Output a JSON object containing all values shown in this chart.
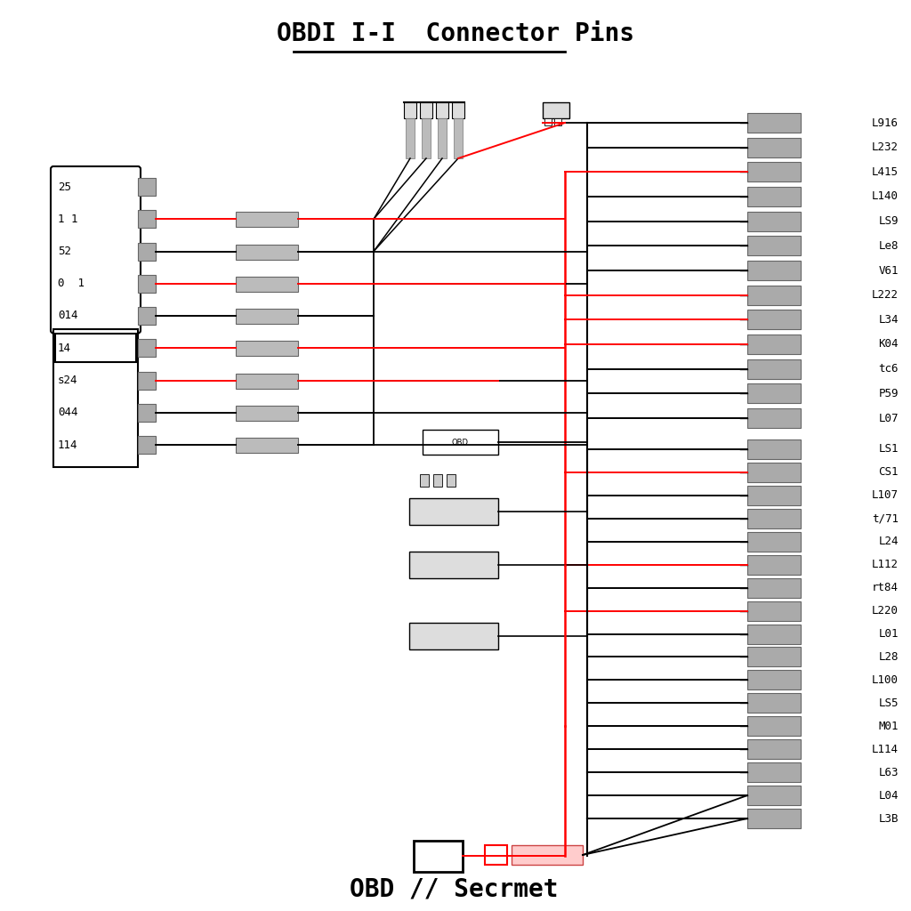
{
  "title": "OBDI I-I  Connector Pins",
  "subtitle": "OBD // Secrmet",
  "bg_color": "#ffffff",
  "title_fontsize": 20,
  "subtitle_fontsize": 20,
  "left_labels": [
    "25",
    "1 1",
    "52",
    "0  1",
    "014",
    "14",
    "s24",
    "044",
    "114"
  ],
  "left_wire_colors": [
    "none",
    "red",
    "black",
    "red",
    "black",
    "red",
    "red",
    "black",
    "black"
  ],
  "right_top_labels": [
    "L916",
    "L232",
    "L415",
    "L140",
    "LS9",
    "Le8",
    "V61",
    "L222",
    "L34",
    "K04",
    "tc6",
    "P59",
    "L07"
  ],
  "right_top_wire_colors": [
    "black",
    "black",
    "red",
    "black",
    "black",
    "black",
    "black",
    "red",
    "red",
    "red",
    "black",
    "black",
    "black"
  ],
  "right_bottom_labels": [
    "LS1",
    "CS1",
    "L107",
    "t/71",
    "L24",
    "L112",
    "rt84",
    "L220",
    "L01",
    "L28",
    "L100",
    "LS5",
    "M01",
    "L114",
    "L63",
    "L04",
    "L3B"
  ],
  "right_bottom_wire_colors": [
    "black",
    "red",
    "black",
    "black",
    "black",
    "red",
    "black",
    "red",
    "black",
    "black",
    "black",
    "black",
    "black",
    "black",
    "black",
    "black",
    "black"
  ]
}
